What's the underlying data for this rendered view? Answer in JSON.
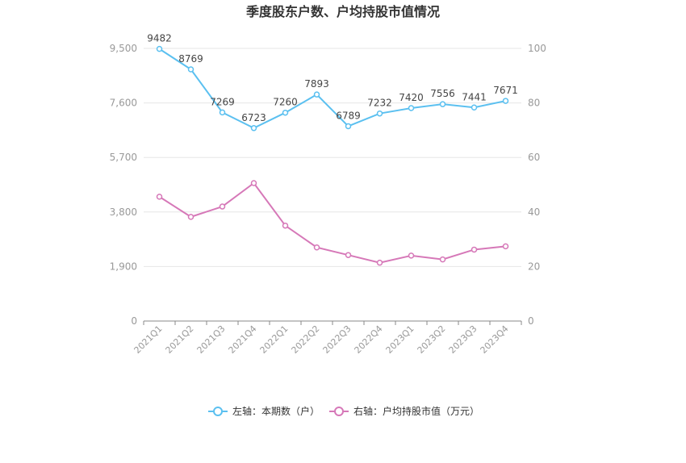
{
  "chart_data": {
    "type": "line",
    "title": "季度股东户数、户均持股市值情况",
    "categories": [
      "2021Q1",
      "2021Q2",
      "2021Q3",
      "2021Q4",
      "2022Q1",
      "2022Q2",
      "2022Q3",
      "2022Q4",
      "2023Q1",
      "2023Q2",
      "2023Q3",
      "2023Q4"
    ],
    "left_axis": {
      "ticks": [
        0,
        1900,
        3800,
        5700,
        7600,
        9500
      ],
      "tick_labels": [
        "0",
        "1,900",
        "3,800",
        "5,700",
        "7,600",
        "9,500"
      ],
      "ylim": [
        0,
        9500
      ]
    },
    "right_axis": {
      "ticks": [
        0,
        20,
        40,
        60,
        80,
        100
      ],
      "tick_labels": [
        "0",
        "20",
        "40",
        "60",
        "80",
        "100"
      ],
      "ylim": [
        0,
        100
      ]
    },
    "series": [
      {
        "name": "左轴：本期数（户）",
        "axis": "left",
        "color": "#5bc0f0",
        "values": [
          9482,
          8769,
          7269,
          6723,
          7260,
          7893,
          6789,
          7232,
          7420,
          7556,
          7441,
          7671
        ],
        "labels": [
          "9482",
          "8769",
          "7269",
          "6723",
          "7260",
          "7893",
          "6789",
          "7232",
          "7420",
          "7556",
          "7441",
          "7671"
        ]
      },
      {
        "name": "右轴：户均持股市值（万元）",
        "axis": "right",
        "color": "#d678b8",
        "values": [
          45.6,
          38.2,
          42.0,
          50.6,
          35.0,
          27.0,
          24.2,
          21.4,
          24.0,
          22.6,
          26.2,
          27.4
        ]
      }
    ],
    "grid": true,
    "legend_position": "bottom-center"
  }
}
